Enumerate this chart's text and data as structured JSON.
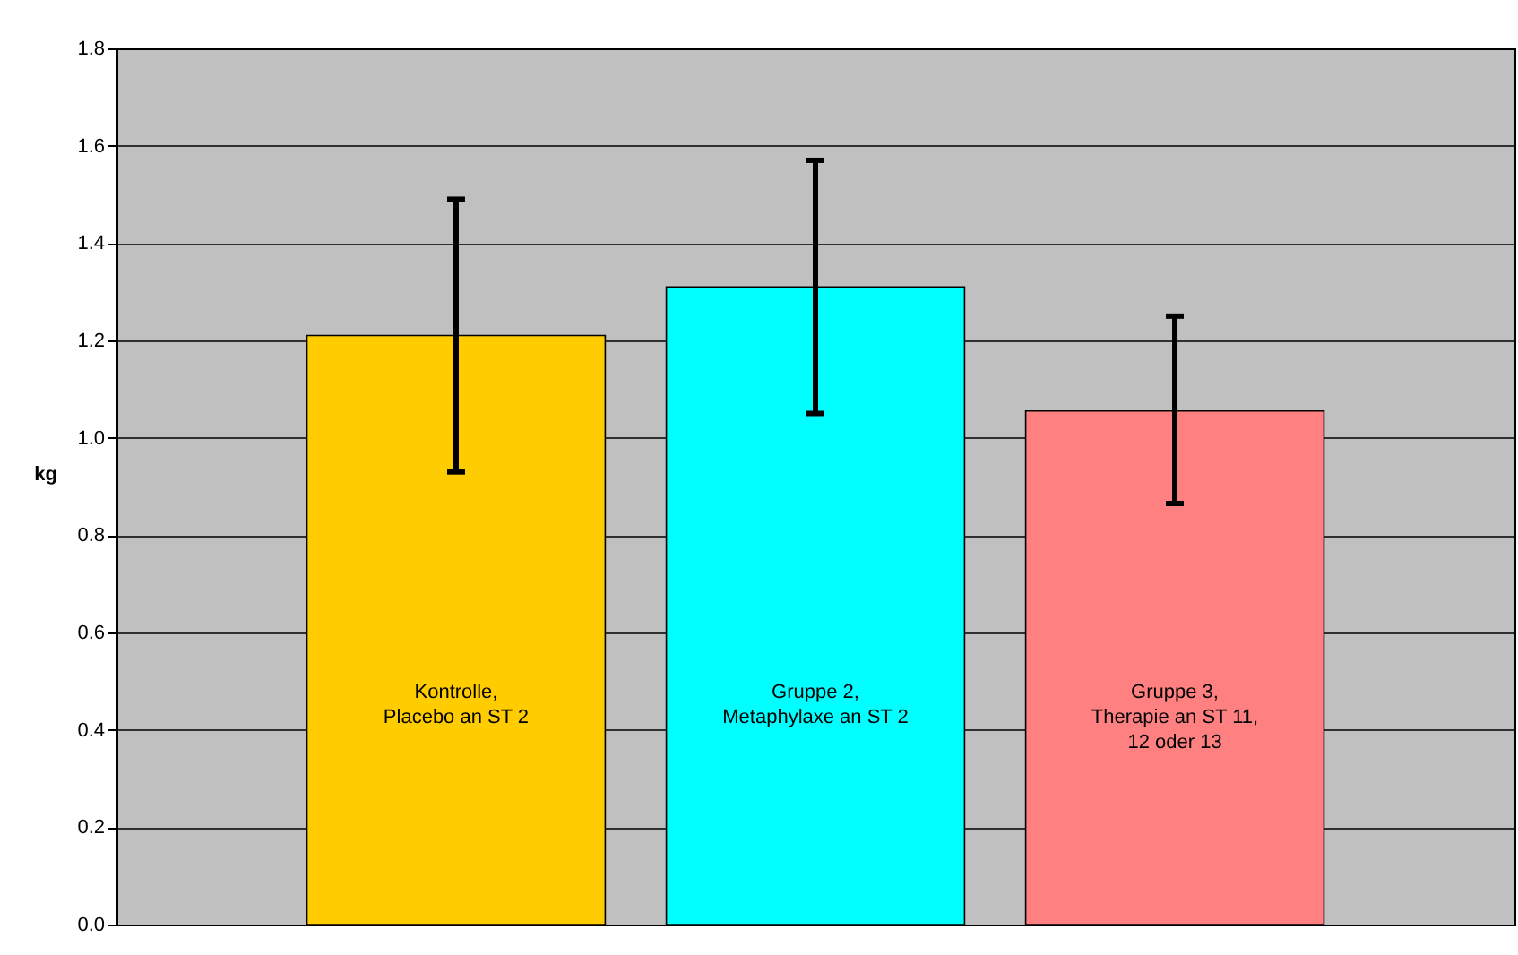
{
  "chart_data": {
    "type": "bar",
    "categories": [
      "Kontrolle,\nPlacebo an ST 2",
      "Gruppe 2,\nMetaphylaxe an ST 2",
      "Gruppe 3,\nTherapie an ST 11,\n12 oder 13"
    ],
    "values": [
      1.21,
      1.31,
      1.055
    ],
    "colors": [
      "#ffcc00",
      "#00ffff",
      "#ff8080"
    ],
    "errors": [
      [
        0.93,
        1.49
      ],
      [
        1.05,
        1.57
      ],
      [
        0.865,
        1.25
      ]
    ],
    "ylabel": "kg",
    "ylim": [
      0,
      1.8
    ],
    "yticks": [
      {
        "value": 0,
        "label": "0.0"
      },
      0.2,
      0.4,
      0.6,
      0.8,
      {
        "value": 1,
        "label": "1.0"
      },
      1.2,
      1.4,
      1.6,
      1.8
    ],
    "grid": "y",
    "tick_labels": "y"
  }
}
